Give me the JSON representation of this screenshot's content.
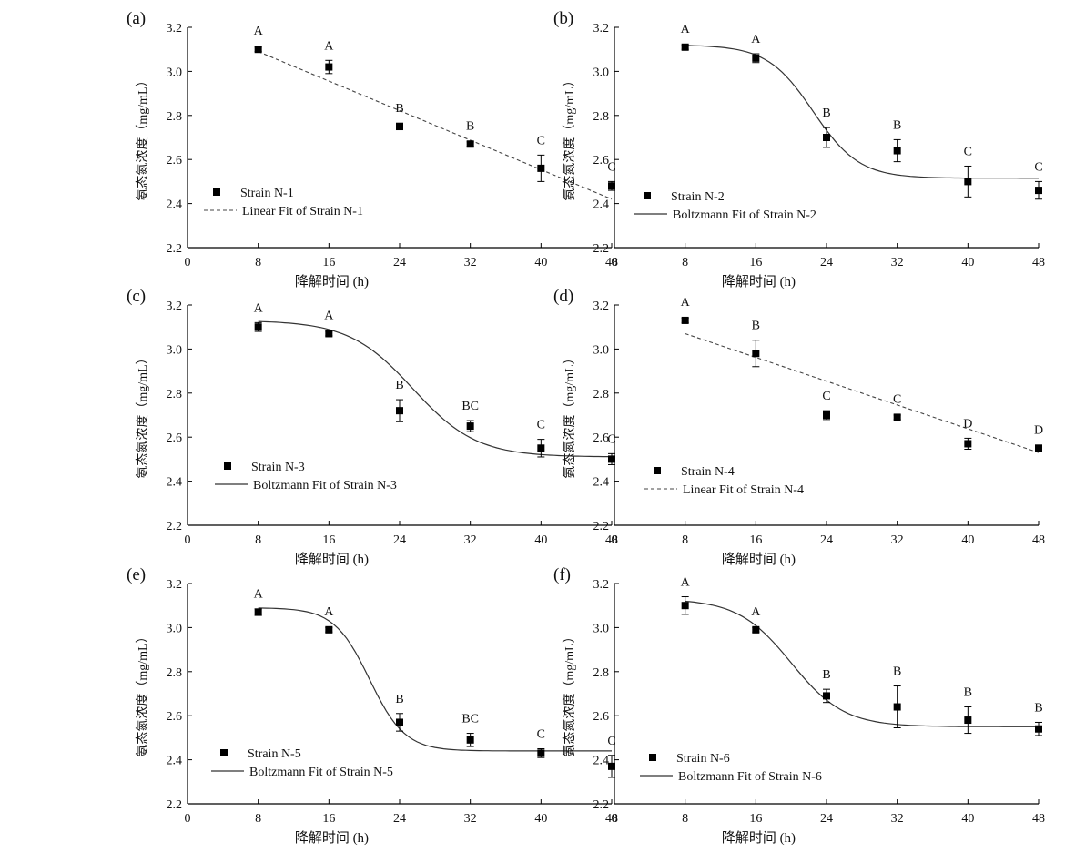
{
  "chart_data": [
    {
      "panel": "(a)",
      "type": "scatter",
      "fit": "linear",
      "xlabel": "降解时间 (h)",
      "ylabel": "氨态氮浓度（mg/mL）",
      "xlim": [
        0,
        48
      ],
      "ylim": [
        2.2,
        3.2
      ],
      "xticks": [
        0,
        8,
        16,
        24,
        32,
        40,
        48
      ],
      "yticks": [
        2.2,
        2.4,
        2.6,
        2.8,
        3.0,
        3.2
      ],
      "x": [
        8,
        16,
        24,
        32,
        40,
        48
      ],
      "y": [
        3.1,
        3.02,
        2.75,
        2.67,
        2.56,
        2.48
      ],
      "err": [
        0.01,
        0.03,
        0.015,
        0.01,
        0.06,
        0.02
      ],
      "letters": [
        "A",
        "A",
        "B",
        "B",
        "C",
        "C"
      ],
      "fit_line": {
        "x": [
          8,
          48
        ],
        "y": [
          3.09,
          2.42
        ]
      },
      "legend": {
        "points": "Strain N-1",
        "line": "Linear Fit  of Strain N-1"
      }
    },
    {
      "panel": "(b)",
      "type": "scatter",
      "fit": "boltzmann",
      "xlabel": "降解时间 (h)",
      "ylabel": "氨态氮浓度（mg/mL）",
      "xlim": [
        0,
        48
      ],
      "ylim": [
        2.2,
        3.2
      ],
      "xticks": [
        0,
        8,
        16,
        24,
        32,
        40,
        48
      ],
      "yticks": [
        2.2,
        2.4,
        2.6,
        2.8,
        3.0,
        3.2
      ],
      "x": [
        8,
        16,
        24,
        32,
        40,
        48
      ],
      "y": [
        3.11,
        3.06,
        2.7,
        2.64,
        2.5,
        2.46
      ],
      "err": [
        0.01,
        0.02,
        0.045,
        0.05,
        0.07,
        0.04
      ],
      "letters": [
        "A",
        "A",
        "B",
        "B",
        "C",
        "C"
      ],
      "fit_params": {
        "A1": 3.12,
        "A2": 2.515,
        "x0": 22.5,
        "dx": 2.6
      },
      "legend": {
        "points": "Strain N-2",
        "line": "Boltzmann Fit of Strain N-2"
      }
    },
    {
      "panel": "(c)",
      "type": "scatter",
      "fit": "boltzmann",
      "xlabel": "降解时间 (h)",
      "ylabel": "氨态氮浓度（mg/mL）",
      "xlim": [
        0,
        48
      ],
      "ylim": [
        2.2,
        3.2
      ],
      "xticks": [
        0,
        8,
        16,
        24,
        32,
        40,
        48
      ],
      "yticks": [
        2.2,
        2.4,
        2.6,
        2.8,
        3.0,
        3.2
      ],
      "x": [
        8,
        16,
        24,
        32,
        40,
        48
      ],
      "y": [
        3.1,
        3.07,
        2.72,
        2.65,
        2.55,
        2.5
      ],
      "err": [
        0.02,
        0.01,
        0.05,
        0.025,
        0.04,
        0.025
      ],
      "letters": [
        "A",
        "A",
        "B",
        "BC",
        "C",
        "C"
      ],
      "fit_params": {
        "A1": 3.13,
        "A2": 2.51,
        "x0": 25.5,
        "dx": 3.6
      },
      "legend": {
        "points": "Strain N-3",
        "line": "Boltzmann Fit of Strain N-3"
      }
    },
    {
      "panel": "(d)",
      "type": "scatter",
      "fit": "linear",
      "xlabel": "降解时间 (h)",
      "ylabel": "氨态氮浓度（mg/mL）",
      "xlim": [
        0,
        48
      ],
      "ylim": [
        2.2,
        3.2
      ],
      "xticks": [
        0,
        8,
        16,
        24,
        32,
        40,
        48
      ],
      "yticks": [
        2.2,
        2.4,
        2.6,
        2.8,
        3.0,
        3.2
      ],
      "x": [
        8,
        16,
        24,
        32,
        40,
        48
      ],
      "y": [
        3.13,
        2.98,
        2.7,
        2.69,
        2.57,
        2.55
      ],
      "err": [
        0.01,
        0.06,
        0.02,
        0.01,
        0.025,
        0.01
      ],
      "letters": [
        "A",
        "B",
        "C",
        "C",
        "D",
        "D"
      ],
      "fit_line": {
        "x": [
          8,
          48
        ],
        "y": [
          3.07,
          2.53
        ]
      },
      "legend": {
        "points": "Strain N-4",
        "line": "Linear Fit  of Strain N-4"
      }
    },
    {
      "panel": "(e)",
      "type": "scatter",
      "fit": "boltzmann",
      "xlabel": "降解时间 (h)",
      "ylabel": "氨态氮浓度（mg/mL）",
      "xlim": [
        0,
        48
      ],
      "ylim": [
        2.2,
        3.2
      ],
      "xticks": [
        0,
        8,
        16,
        24,
        32,
        40,
        48
      ],
      "yticks": [
        2.2,
        2.4,
        2.6,
        2.8,
        3.0,
        3.2
      ],
      "x": [
        8,
        16,
        24,
        32,
        40,
        48
      ],
      "y": [
        3.07,
        2.99,
        2.57,
        2.49,
        2.43,
        2.37
      ],
      "err": [
        0.015,
        0.01,
        0.04,
        0.03,
        0.02,
        0.05
      ],
      "letters": [
        "A",
        "A",
        "B",
        "BC",
        "C",
        "C"
      ],
      "fit_params": {
        "A1": 3.09,
        "A2": 2.44,
        "x0": 20.6,
        "dx": 2.0
      },
      "legend": {
        "points": "Strain N-5",
        "line": "Boltzmann Fit of Strain N-5"
      }
    },
    {
      "panel": "(f)",
      "type": "scatter",
      "fit": "boltzmann",
      "xlabel": "降解时间 (h)",
      "ylabel": "氨态氮浓度（mg/mL）",
      "xlim": [
        0,
        48
      ],
      "ylim": [
        2.2,
        3.2
      ],
      "xticks": [
        0,
        8,
        16,
        24,
        32,
        40,
        48
      ],
      "yticks": [
        2.2,
        2.4,
        2.6,
        2.8,
        3.0,
        3.2
      ],
      "x": [
        8,
        16,
        24,
        32,
        40,
        48
      ],
      "y": [
        3.1,
        2.99,
        2.69,
        2.64,
        2.58,
        2.54
      ],
      "err": [
        0.04,
        0.01,
        0.03,
        0.095,
        0.06,
        0.03
      ],
      "letters": [
        "A",
        "A",
        "B",
        "B",
        "B",
        "B"
      ],
      "fit_params": {
        "A1": 3.13,
        "A2": 2.55,
        "x0": 20.0,
        "dx": 3.0
      },
      "legend": {
        "points": "Strain N-6",
        "line": "Boltzmann Fit of Strain N-6"
      }
    }
  ]
}
